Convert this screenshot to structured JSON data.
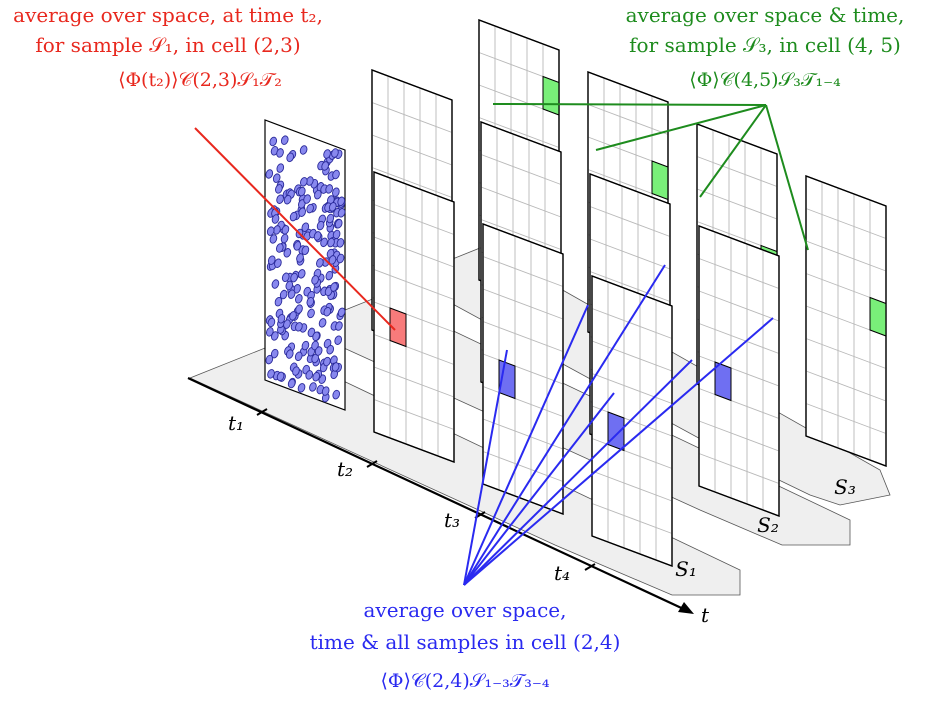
{
  "annotations": {
    "red": {
      "line1": "average over space, at time t₂,",
      "line2": "for sample 𝒮₁, in cell (2,3)",
      "formula": "⟨Φ(t₂)⟩𝒞(2,3)𝒮₁𝒯₂"
    },
    "green": {
      "line1": "average over space & time,",
      "line2": "for sample 𝒮₃, in cell (4, 5)",
      "formula": "⟨Φ⟩𝒞(4,5)𝒮₃𝒯₁₋₄"
    },
    "blue": {
      "line1": "average over space,",
      "line2": "time & all samples in cell (2,4)",
      "formula": "⟨Φ⟩𝒞(2,4)𝒮₁₋₃𝒯₃₋₄"
    }
  },
  "time_labels": [
    "t₁",
    "t₂",
    "t₃",
    "t₄"
  ],
  "time_axis_label": "t",
  "sample_labels": [
    "S₁",
    "S₂",
    "S₃"
  ],
  "colors": {
    "red": "#e8281e",
    "green": "#1e8c1e",
    "blue": "#2a2af0",
    "highlight_red": "#f87b7b",
    "highlight_green": "#79ef79",
    "highlight_blue": "#6f6ff2",
    "particle": "#8888ee",
    "grid": "#b8b8b8",
    "floor": "#efefef"
  },
  "grid": {
    "cols": 5,
    "rows": 8
  },
  "highlighted_cells": {
    "red": {
      "cell": [
        2,
        3
      ]
    },
    "green": {
      "cell": [
        4,
        5
      ]
    },
    "blue": {
      "cell": [
        2,
        4
      ]
    }
  }
}
